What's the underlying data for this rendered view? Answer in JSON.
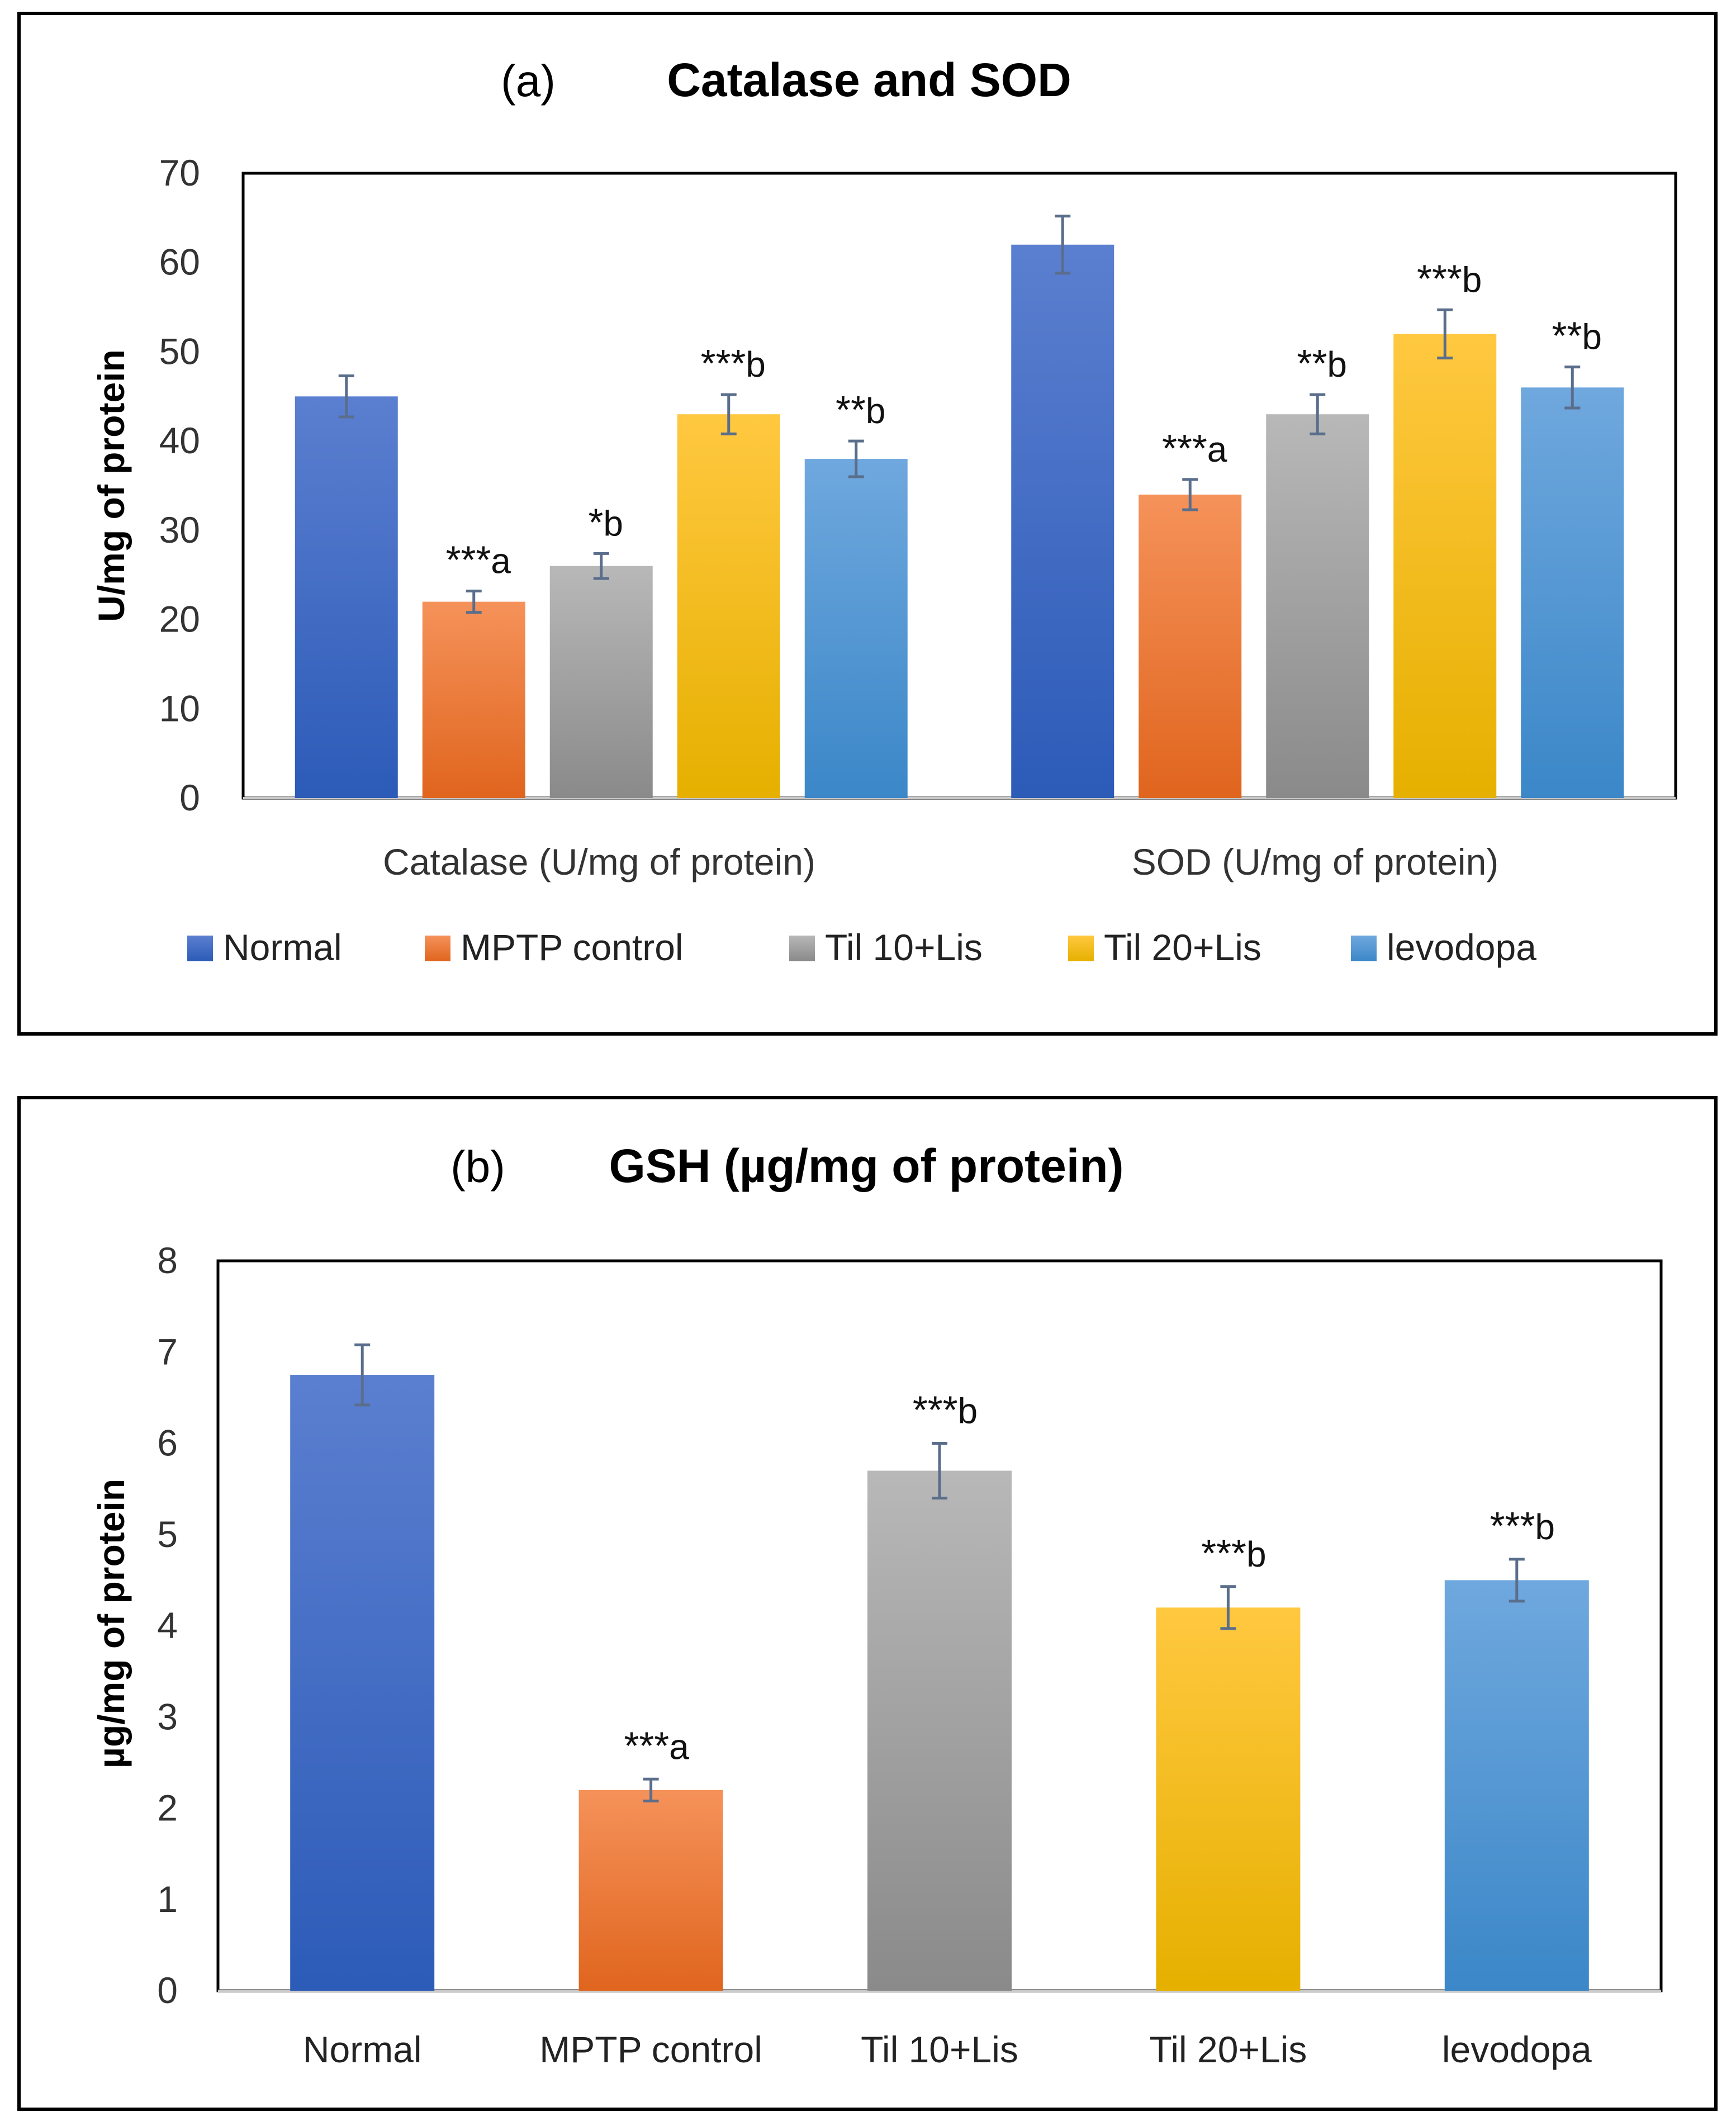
{
  "colors": {
    "Normal": [
      "#5b7fd0",
      "#2c5bb8"
    ],
    "MPTP control": [
      "#f5925a",
      "#e0651e"
    ],
    "Til 10+Lis": [
      "#b8b8b8",
      "#8a8a8a"
    ],
    "Til 20+Lis": [
      "#ffc840",
      "#e6b000"
    ],
    "levodopa": [
      "#6fa8de",
      "#3b87c8"
    ],
    "error_bar": "#5a6e8c",
    "frame": "#000000"
  },
  "chart_data": [
    {
      "type": "bar",
      "panel_label": "(a)",
      "title": "Catalase and SOD",
      "ylabel": "U/mg of protein",
      "xlabel": "",
      "ylim": [
        0,
        70
      ],
      "yticks": [
        "0",
        "10",
        "20",
        "30",
        "40",
        "50",
        "60",
        "70"
      ],
      "categories": [
        "Catalase (U/mg of protein)",
        "SOD (U/mg of protein)"
      ],
      "legend": [
        "Normal",
        "MPTP control",
        "Til 10+Lis",
        "Til 20+Lis",
        "levodopa"
      ],
      "legend_position": "bottom",
      "series": [
        {
          "name": "Normal",
          "values": [
            45,
            62
          ],
          "errors": [
            2.3,
            3.2
          ],
          "labels": [
            "",
            ""
          ]
        },
        {
          "name": "MPTP control",
          "values": [
            22,
            34
          ],
          "errors": [
            1.2,
            1.7
          ],
          "labels": [
            "***a",
            "***a"
          ]
        },
        {
          "name": "Til 10+Lis",
          "values": [
            26,
            43
          ],
          "errors": [
            1.4,
            2.2
          ],
          "labels": [
            "*b",
            "**b"
          ]
        },
        {
          "name": "Til 20+Lis",
          "values": [
            43,
            52
          ],
          "errors": [
            2.2,
            2.7
          ],
          "labels": [
            "***b",
            "***b"
          ]
        },
        {
          "name": "levodopa",
          "values": [
            38,
            46
          ],
          "errors": [
            2.0,
            2.3
          ],
          "labels": [
            "**b",
            "**b"
          ]
        }
      ]
    },
    {
      "type": "bar",
      "panel_label": "(b)",
      "title": "GSH (µg/mg of protein)",
      "ylabel": "µg/mg of protein",
      "xlabel": "",
      "ylim": [
        0,
        8
      ],
      "yticks": [
        "0",
        "1",
        "2",
        "3",
        "4",
        "5",
        "6",
        "7",
        "8"
      ],
      "categories": [
        "Normal",
        "MPTP control",
        "Til 10+Lis",
        "Til 20+Lis",
        "levodopa"
      ],
      "values": [
        6.75,
        2.2,
        5.7,
        4.2,
        4.5
      ],
      "errors": [
        0.33,
        0.12,
        0.3,
        0.23,
        0.23
      ],
      "labels": [
        "",
        "***a",
        "***b",
        "***b",
        "***b"
      ]
    }
  ]
}
